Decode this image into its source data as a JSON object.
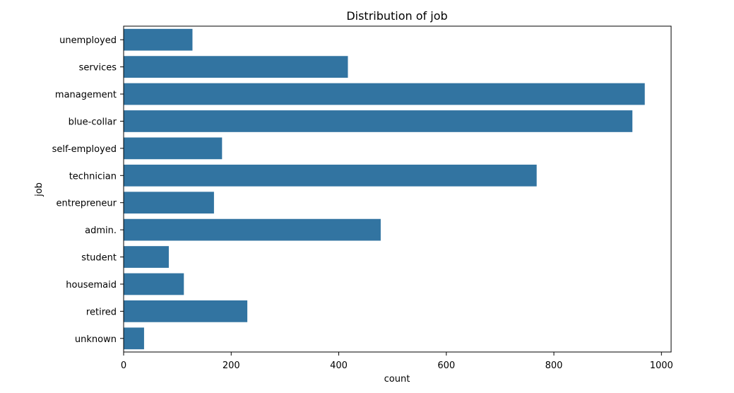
{
  "chart_data": {
    "type": "bar",
    "orientation": "horizontal",
    "title": "Distribution of job",
    "xlabel": "count",
    "ylabel": "job",
    "xlim": [
      0,
      1018
    ],
    "x_ticks": [
      0,
      200,
      400,
      600,
      800,
      1000
    ],
    "grid": false,
    "legend": "none",
    "bar_color": "#3274a1",
    "categories": [
      "unemployed",
      "services",
      "management",
      "blue-collar",
      "self-employed",
      "technician",
      "entrepreneur",
      "admin.",
      "student",
      "housemaid",
      "retired",
      "unknown"
    ],
    "values": [
      128,
      417,
      969,
      946,
      183,
      768,
      168,
      478,
      84,
      112,
      230,
      38
    ]
  }
}
